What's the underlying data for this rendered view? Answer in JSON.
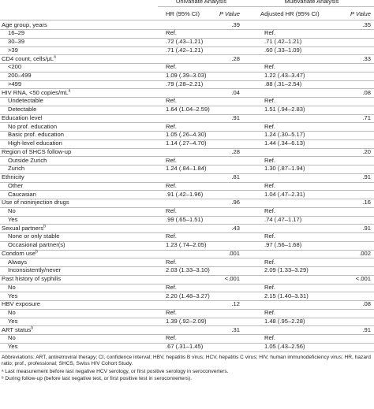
{
  "table": {
    "groups": [
      "Univariate Analysis",
      "Multivariate Analysis"
    ],
    "columns": [
      "HR (95% CI)",
      "P Value",
      "Adjusted HR (95% CI)",
      "P Value"
    ],
    "rows": [
      {
        "label": "Age group, years",
        "p1": ".39",
        "p2": ".35"
      },
      {
        "label": "16–29",
        "hr1": "Ref.",
        "hr2": "Ref."
      },
      {
        "label": "30–39",
        "hr1": ".72 (.43–1.21)",
        "hr2": ".71 (.42–1.21)"
      },
      {
        "label": ">39",
        "hr1": ".71 (.42–1.21)",
        "hr2": ".60 (.33–1.09)"
      },
      {
        "label": "CD4 count, cells/μL",
        "sup": "a",
        "p1": ".28",
        "p2": ".33"
      },
      {
        "label": "<200",
        "hr1": "Ref.",
        "hr2": "Ref."
      },
      {
        "label": "200–499",
        "hr1": "1.09 (.39–3.03)",
        "hr2": "1.22 (.43–3.47)"
      },
      {
        "label": ">499",
        "hr1": ".79 (.28–2.21)",
        "hr2": ".88 (.31–2.54)"
      },
      {
        "label": "HIV RNA, <50 copies/mL",
        "sup": "a",
        "p1": ".04",
        "p2": ".08"
      },
      {
        "label": "Undetectable",
        "hr1": "Ref.",
        "hr2": "Ref."
      },
      {
        "label": "Detectable",
        "hr1": "1.64 (1.04–2.59)",
        "hr2": "1.51 (.94–2.83)"
      },
      {
        "label": "Education level",
        "p1": ".91",
        "p2": ".71"
      },
      {
        "label": "No prof. education",
        "hr1": "Ref.",
        "hr2": "Ref."
      },
      {
        "label": "Basic prof. education",
        "hr1": "1.05 (.26–4.30)",
        "hr2": "1.24 (.30–5.17)"
      },
      {
        "label": "High-level education",
        "hr1": "1.14 (.27–4.70)",
        "hr2": "1.44 (.34–6.13)"
      },
      {
        "label": "Region of SHCS follow-up",
        "p1": ".28",
        "p2": ".20"
      },
      {
        "label": "Outside Zurich",
        "hr1": "Ref.",
        "hr2": "Ref."
      },
      {
        "label": "Zurich",
        "hr1": "1.24 (.84–1.84)",
        "hr2": "1.30 (.87–1.94)"
      },
      {
        "label": "Ethnicity",
        "p1": ".81",
        "p2": ".91"
      },
      {
        "label": "Other",
        "hr1": "Ref.",
        "hr2": "Ref."
      },
      {
        "label": "Caucasian",
        "hr1": ".91 (.42–1.96)",
        "hr2": "1.04 (.47–2.31)"
      },
      {
        "label": "Use of noninjection drugs",
        "p1": ".96",
        "p2": ".16"
      },
      {
        "label": "No",
        "hr1": "Ref.",
        "hr2": "Ref."
      },
      {
        "label": "Yes",
        "hr1": ".99 (.65–1.51)",
        "hr2": ".74 (.47–1.17)"
      },
      {
        "label": "Sexual partners",
        "sup": "b",
        "p1": ".43",
        "p2": ".91"
      },
      {
        "label": "None or only stable",
        "hr1": "Ref.",
        "hr2": "Ref."
      },
      {
        "label": "Occasional partner(s)",
        "hr1": "1.23 (.74–2.05)",
        "hr2": ".97 (.56–1.68)"
      },
      {
        "label": "Condom use",
        "sup": "b",
        "p1": ".001",
        "p2": ".002"
      },
      {
        "label": "Always",
        "hr1": "Ref.",
        "hr2": "Ref."
      },
      {
        "label": "Inconsistently/never",
        "hr1": "2.03 (1.33–3.10)",
        "hr2": "2.09 (1.33–3.29)"
      },
      {
        "label": "Past history of syphilis",
        "p1": "<.001",
        "p2": "<.001"
      },
      {
        "label": "No",
        "hr1": "Ref.",
        "hr2": "Ref."
      },
      {
        "label": "Yes",
        "hr1": "2.20 (1.48–3.27)",
        "hr2": "2.15 (1.40–3.31)"
      },
      {
        "label": "HBV exposure",
        "p1": ".12",
        "p2": ".08"
      },
      {
        "label": "No",
        "hr1": "Ref.",
        "hr2": "Ref."
      },
      {
        "label": "Yes",
        "hr1": "1.39 (.92–2.09)",
        "hr2": "1.48 (.95–2.28)"
      },
      {
        "label": "ART status",
        "sup": "b",
        "p1": ".31",
        "p2": ".91"
      },
      {
        "label": "No",
        "hr1": "Ref.",
        "hr2": "Ref."
      },
      {
        "label": "Yes",
        "hr1": ".67 (.31–1.45)",
        "hr2": "1.05 (.43–2.56)"
      }
    ],
    "footnotes": [
      "Abbreviations: ART, antiretroviral therapy; CI, confidence interval; HBV, hepatitis B virus; HCV, hepatitis C virus; HIV, human immunodeficiency virus; HR, hazard ratio; prof., professional; SHCS, Swiss HIV Cohort Study.",
      "ᵃ Last measurement before last negative HCV serology, or first positive serology in seroconverters.",
      "ᵇ During follow-up (before last negative test, or first positive test in seroconverters)."
    ]
  }
}
